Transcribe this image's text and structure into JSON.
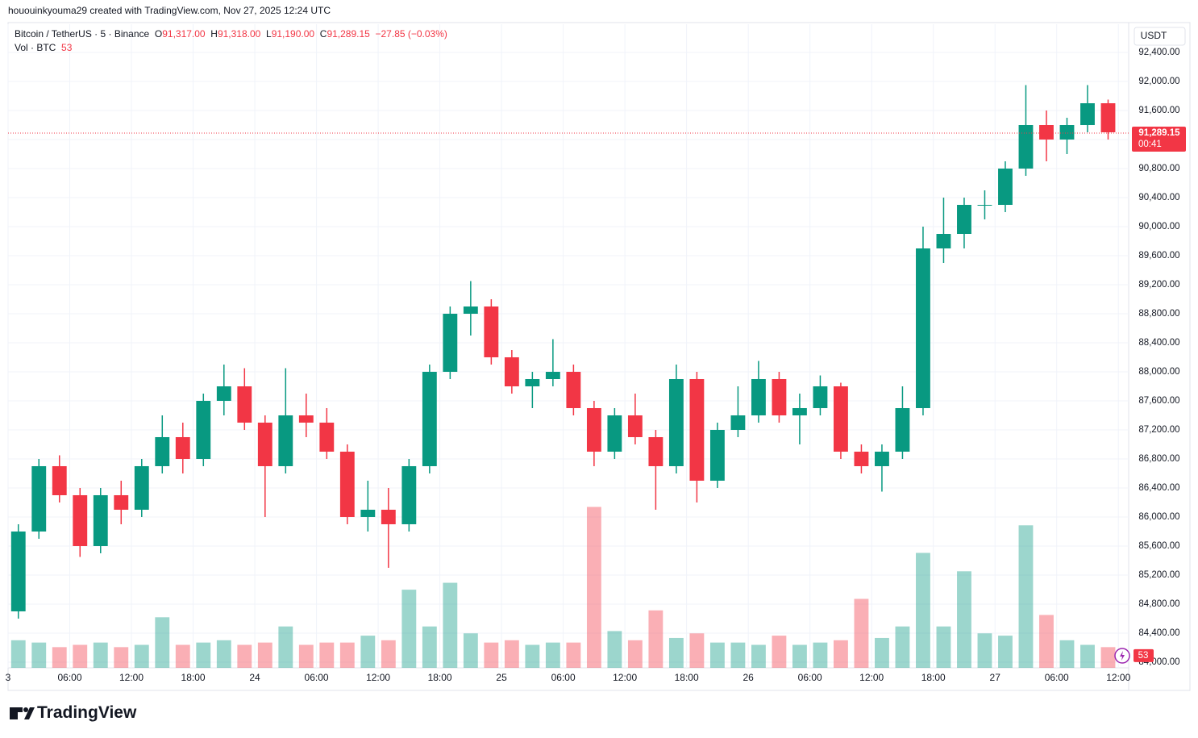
{
  "header": "hououinkyouma29 created with TradingView.com, Nov 27, 2025 12:24 UTC",
  "legend": {
    "symbol": "Bitcoin / TetherUS · 5 · Binance",
    "o_label": "O",
    "open": "91,317.00",
    "h_label": "H",
    "high": "91,318.00",
    "l_label": "L",
    "low": "91,190.00",
    "c_label": "C",
    "close": "91,289.15",
    "change": "−27.85 (−0.03%)",
    "vol_label": "Vol · BTC",
    "vol": "53"
  },
  "footer": "TradingView",
  "chart_data": {
    "type": "candlestick",
    "currency": "USDT",
    "up_color": "#089981",
    "down_color": "#f23645",
    "grid": true,
    "x": [
      1,
      3,
      5,
      7,
      9,
      11,
      13,
      15,
      17,
      19,
      21,
      23,
      25,
      27,
      29,
      31,
      33,
      35,
      37,
      39,
      41,
      43,
      45,
      47,
      49,
      51,
      53,
      55,
      57,
      59,
      61,
      63,
      65,
      67,
      69,
      71,
      73,
      75,
      77,
      79,
      81,
      83,
      85,
      87,
      89,
      91,
      93,
      95,
      97,
      99,
      101,
      103,
      105,
      107
    ],
    "ohlc": [
      [
        84700,
        85900,
        84600,
        85800
      ],
      [
        85800,
        86800,
        85700,
        86700
      ],
      [
        86700,
        86850,
        86200,
        86300
      ],
      [
        86300,
        86400,
        85450,
        85600
      ],
      [
        85600,
        86400,
        85500,
        86300
      ],
      [
        86300,
        86500,
        85900,
        86100
      ],
      [
        86100,
        86800,
        86000,
        86700
      ],
      [
        86700,
        87400,
        86600,
        87100
      ],
      [
        87100,
        87300,
        86600,
        86800
      ],
      [
        86800,
        87700,
        86700,
        87600
      ],
      [
        87600,
        88100,
        87400,
        87800
      ],
      [
        87800,
        88050,
        87200,
        87300
      ],
      [
        87300,
        87400,
        86000,
        86700
      ],
      [
        86700,
        88050,
        86600,
        87400
      ],
      [
        87400,
        87700,
        87100,
        87300
      ],
      [
        87300,
        87500,
        86800,
        86900
      ],
      [
        86900,
        87000,
        85900,
        86000
      ],
      [
        86000,
        86500,
        85800,
        86100
      ],
      [
        86100,
        86400,
        85300,
        85900
      ],
      [
        85900,
        86800,
        85800,
        86700
      ],
      [
        86700,
        88100,
        86600,
        88000
      ],
      [
        88000,
        88900,
        87900,
        88800
      ],
      [
        88800,
        89250,
        88500,
        88900
      ],
      [
        88900,
        89000,
        88100,
        88200
      ],
      [
        88200,
        88300,
        87700,
        87800
      ],
      [
        87800,
        88000,
        87500,
        87900
      ],
      [
        87900,
        88450,
        87800,
        88000
      ],
      [
        88000,
        88100,
        87400,
        87500
      ],
      [
        87500,
        87600,
        86700,
        86900
      ],
      [
        86900,
        87500,
        86800,
        87400
      ],
      [
        87400,
        87700,
        87000,
        87100
      ],
      [
        87100,
        87200,
        86100,
        86700
      ],
      [
        86700,
        88100,
        86600,
        87900
      ],
      [
        87900,
        88000,
        86200,
        86500
      ],
      [
        86500,
        87300,
        86400,
        87200
      ],
      [
        87200,
        87800,
        87100,
        87400
      ],
      [
        87400,
        88150,
        87300,
        87900
      ],
      [
        87900,
        88000,
        87300,
        87400
      ],
      [
        87400,
        87700,
        87000,
        87500
      ],
      [
        87500,
        87950,
        87400,
        87800
      ],
      [
        87800,
        87850,
        86800,
        86900
      ],
      [
        86900,
        87000,
        86600,
        86700
      ],
      [
        86700,
        87000,
        86350,
        86900
      ],
      [
        86900,
        87800,
        86800,
        87500
      ],
      [
        87500,
        90000,
        87400,
        89700
      ],
      [
        89700,
        90400,
        89500,
        89900
      ],
      [
        89900,
        90400,
        89700,
        90300
      ],
      [
        90300,
        90500,
        90100,
        90300
      ],
      [
        90300,
        90900,
        90200,
        90800
      ],
      [
        90800,
        91950,
        90700,
        91400
      ],
      [
        91400,
        91600,
        90900,
        91200
      ],
      [
        91200,
        91500,
        91000,
        91400
      ],
      [
        91400,
        91950,
        91300,
        91700
      ],
      [
        91700,
        91750,
        91200,
        91300
      ]
    ],
    "volume": [
      120,
      110,
      90,
      100,
      110,
      90,
      100,
      220,
      100,
      110,
      120,
      100,
      110,
      180,
      100,
      110,
      110,
      140,
      120,
      340,
      180,
      370,
      150,
      110,
      120,
      100,
      110,
      110,
      700,
      160,
      120,
      250,
      130,
      150,
      110,
      110,
      100,
      140,
      100,
      110,
      120,
      300,
      130,
      180,
      500,
      180,
      420,
      150,
      140,
      620,
      230,
      120,
      100,
      90
    ],
    "vlim": [
      0,
      800
    ],
    "last_price": {
      "value": 91289.15,
      "label": "91,289.15",
      "countdown": "00:41"
    },
    "last_volume": 53,
    "xlim": [
      0,
      109
    ],
    "xticks": [
      {
        "value": 0,
        "label": "3"
      },
      {
        "value": 6,
        "label": "06:00"
      },
      {
        "value": 12,
        "label": "12:00"
      },
      {
        "value": 18,
        "label": "18:00"
      },
      {
        "value": 24,
        "label": "24"
      },
      {
        "value": 30,
        "label": "06:00"
      },
      {
        "value": 36,
        "label": "12:00"
      },
      {
        "value": 42,
        "label": "18:00"
      },
      {
        "value": 48,
        "label": "25"
      },
      {
        "value": 54,
        "label": "06:00"
      },
      {
        "value": 60,
        "label": "12:00"
      },
      {
        "value": 66,
        "label": "18:00"
      },
      {
        "value": 72,
        "label": "26"
      },
      {
        "value": 78,
        "label": "06:00"
      },
      {
        "value": 84,
        "label": "12:00"
      },
      {
        "value": 90,
        "label": "18:00"
      },
      {
        "value": 96,
        "label": "27"
      },
      {
        "value": 102,
        "label": "06:00"
      },
      {
        "value": 108,
        "label": "12:00"
      }
    ],
    "ylim": [
      83922,
      92789
    ],
    "yticks": [
      {
        "value": 84000,
        "label": "84,000.00"
      },
      {
        "value": 84400,
        "label": "84,400.00"
      },
      {
        "value": 84800,
        "label": "84,800.00"
      },
      {
        "value": 85200,
        "label": "85,200.00"
      },
      {
        "value": 85600,
        "label": "85,600.00"
      },
      {
        "value": 86000,
        "label": "86,000.00"
      },
      {
        "value": 86400,
        "label": "86,400.00"
      },
      {
        "value": 86800,
        "label": "86,800.00"
      },
      {
        "value": 87200,
        "label": "87,200.00"
      },
      {
        "value": 87600,
        "label": "87,600.00"
      },
      {
        "value": 88000,
        "label": "88,000.00"
      },
      {
        "value": 88400,
        "label": "88,400.00"
      },
      {
        "value": 88800,
        "label": "88,800.00"
      },
      {
        "value": 89200,
        "label": "89,200.00"
      },
      {
        "value": 89600,
        "label": "89,600.00"
      },
      {
        "value": 90000,
        "label": "90,000.00"
      },
      {
        "value": 90400,
        "label": "90,400.00"
      },
      {
        "value": 90800,
        "label": "90,800.00"
      },
      {
        "value": 91200,
        "label": "91,200.00"
      },
      {
        "value": 91600,
        "label": "91,600.00"
      },
      {
        "value": 92000,
        "label": "92,000.00"
      },
      {
        "value": 92400,
        "label": "92,400.00"
      }
    ]
  }
}
